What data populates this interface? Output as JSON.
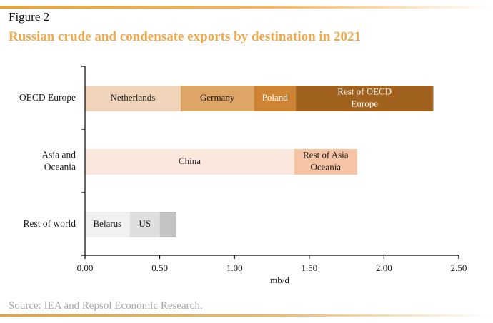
{
  "header": {
    "figure_label": "Figure 2",
    "title": "Russian crude and condensate exports by destination in 2021"
  },
  "footer": {
    "source": "Source: IEA and Repsol Economic Research."
  },
  "colors": {
    "accent": "#e8a23a",
    "title": "#f0a84c"
  },
  "chart_data": {
    "type": "bar",
    "orientation": "horizontal",
    "stacked": true,
    "title": "Russian crude and condensate exports by destination in 2021",
    "xlabel": "mb/d",
    "ylabel": "",
    "xlim": [
      0,
      2.5
    ],
    "x_ticks": [
      "0.00",
      "0.50",
      "1.00",
      "1.50",
      "2.00",
      "2.50"
    ],
    "grid": false,
    "legend": "none",
    "categories": [
      {
        "label": [
          "OECD Europe"
        ],
        "segments": [
          {
            "label": [
              "Netherlands"
            ],
            "value": 0.64,
            "color": "#efd4b9",
            "text_color": "#1a1a1a"
          },
          {
            "label": [
              "Germany"
            ],
            "value": 0.49,
            "color": "#dfa566",
            "text_color": "#1a1a1a"
          },
          {
            "label": [
              "Poland"
            ],
            "value": 0.28,
            "color": "#cd8535",
            "text_color": "#ffffff"
          },
          {
            "label": [
              "Rest of OECD",
              "Europe"
            ],
            "value": 0.92,
            "color": "#a0621e",
            "text_color": "#ffffff"
          }
        ]
      },
      {
        "label": [
          "Asia and",
          "Oceania"
        ],
        "segments": [
          {
            "label": [
              "China"
            ],
            "value": 1.4,
            "color": "#fbe7dc",
            "text_color": "#1a1a1a"
          },
          {
            "label": [
              "Rest of Asia",
              "Oceania"
            ],
            "value": 0.42,
            "color": "#f4c4a4",
            "text_color": "#1a1a1a"
          }
        ]
      },
      {
        "label": [
          "Rest of world"
        ],
        "segments": [
          {
            "label": [
              "Belarus"
            ],
            "value": 0.3,
            "color": "#f1f1f1",
            "text_color": "#1a1a1a"
          },
          {
            "label": [
              "US"
            ],
            "value": 0.2,
            "color": "#dedede",
            "text_color": "#1a1a1a"
          },
          {
            "label": [],
            "value": 0.11,
            "color": "#c3c3c3",
            "text_color": "#1a1a1a"
          }
        ]
      }
    ]
  }
}
